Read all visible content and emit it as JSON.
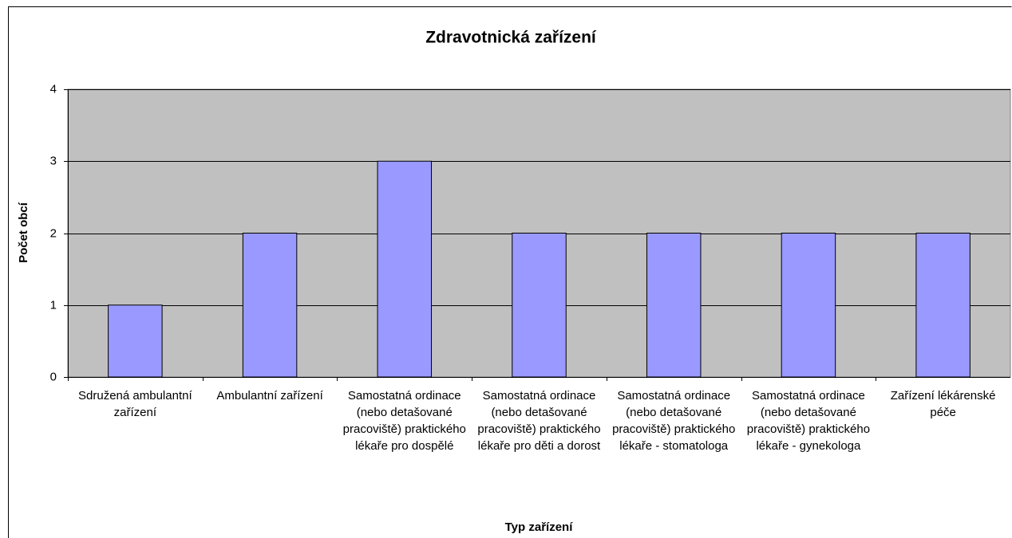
{
  "chart_data": {
    "type": "bar",
    "title": "Zdravotnická zařízení",
    "xlabel": "Typ zařízení",
    "ylabel": "Počet obcí",
    "categories": [
      "Sdružená ambulantní zařízení",
      "Ambulantní zařízení",
      "Samostatná ordinace (nebo detašované pracoviště) praktického lékaře pro dospělé",
      "Samostatná ordinace (nebo detašované pracoviště) praktického lékaře pro děti a dorost",
      "Samostatná ordinace (nebo detašované pracoviště) praktického lékaře - stomatologa",
      "Samostatná ordinace (nebo detašované pracoviště) praktického lékaře - gynekologa",
      "Zařízení lékárenské péče"
    ],
    "values": [
      1,
      2,
      3,
      2,
      2,
      2,
      2
    ],
    "color": "#9999ff",
    "plot_background": "#c0c0c0",
    "ylim": [
      0,
      4
    ],
    "yticks": [
      0,
      1,
      2,
      3,
      4
    ],
    "grid": true
  }
}
